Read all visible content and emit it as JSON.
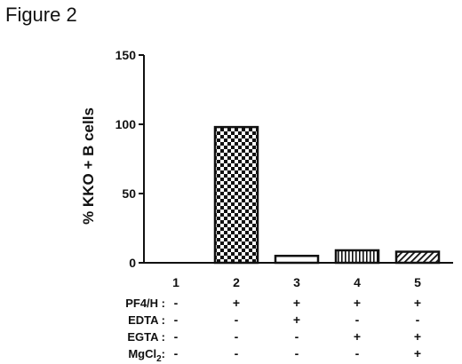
{
  "figure_label": "Figure 2",
  "chart_data": {
    "type": "bar",
    "title": "",
    "xlabel": "",
    "ylabel": "% KKO + B cells",
    "ylim": [
      0,
      150
    ],
    "yticks": [
      0,
      50,
      100,
      150
    ],
    "categories": [
      "1",
      "2",
      "3",
      "4",
      "5"
    ],
    "values": [
      0,
      98,
      5,
      9,
      8
    ],
    "bar_patterns": [
      "none",
      "checker",
      "empty",
      "vertical",
      "diagonal"
    ],
    "grid": false,
    "legend": "none",
    "condition_rows": [
      {
        "label": "PF4/H :",
        "marks": [
          "-",
          "+",
          "+",
          "+",
          "+"
        ]
      },
      {
        "label": "EDTA :",
        "marks": [
          "-",
          "-",
          "+",
          "-",
          "-"
        ]
      },
      {
        "label": "EGTA :",
        "marks": [
          "-",
          "-",
          "-",
          "+",
          "+"
        ]
      },
      {
        "label_base": "MgCl",
        "label_sub": "2",
        "label_suffix": ":",
        "marks": [
          "-",
          "-",
          "-",
          "-",
          "+"
        ]
      }
    ]
  }
}
